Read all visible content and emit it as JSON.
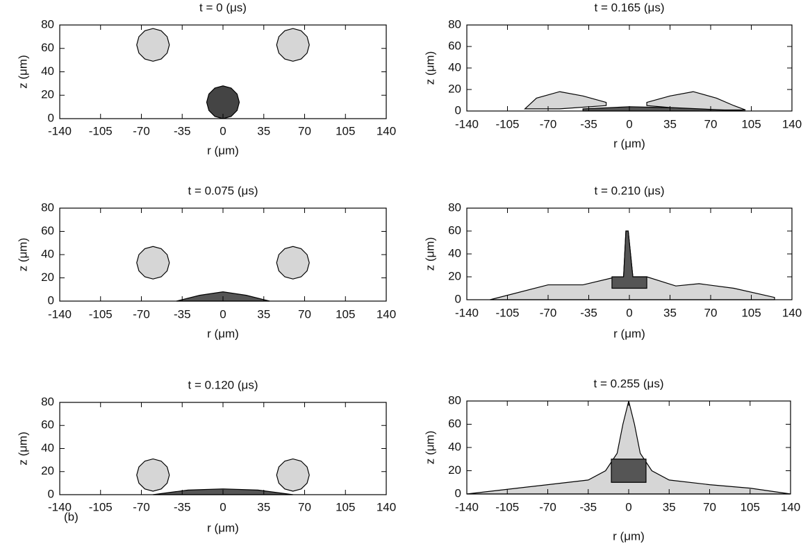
{
  "chart_data": [
    {
      "type": "area",
      "title": "t = 0 (μs)",
      "xlabel": "r (μm)",
      "ylabel": "z (μm)",
      "xlim": [
        -140,
        140
      ],
      "ylim": [
        0,
        80
      ],
      "xticks": [
        -140,
        -105,
        -70,
        -35,
        0,
        35,
        70,
        105,
        140
      ],
      "yticks": [
        0,
        20,
        40,
        60,
        80
      ],
      "series": [
        {
          "color": "#d6d6d6",
          "x": [
            -46,
            -47.9,
            -53,
            -60,
            -67,
            -72.1,
            -74,
            -72.1,
            -67,
            -60,
            -53,
            -47.9
          ],
          "values": [
            63,
            70,
            75.1,
            77,
            75.1,
            70,
            63,
            56,
            50.9,
            49,
            50.9,
            56
          ]
        },
        {
          "color": "#d6d6d6",
          "x": [
            74,
            72.1,
            67,
            60,
            53,
            47.9,
            46,
            47.9,
            53,
            60,
            67,
            72.1
          ],
          "values": [
            63,
            70,
            75.1,
            77,
            75.1,
            70,
            63,
            56,
            50.9,
            49,
            50.9,
            56
          ]
        },
        {
          "color": "#444444",
          "x": [
            14,
            12.1,
            7,
            0,
            -7,
            -12.1,
            -14,
            -12.1,
            -7,
            0,
            7,
            12.1
          ],
          "values": [
            14,
            21,
            26.1,
            28,
            26.1,
            21,
            14,
            7,
            1.9,
            0,
            1.9,
            7
          ]
        }
      ]
    },
    {
      "type": "area",
      "title": "t = 0.165 (μs)",
      "xlabel": "r (μm)",
      "ylabel": "z (μm)",
      "xlim": [
        -140,
        140
      ],
      "ylim": [
        0,
        80
      ],
      "xticks": [
        -140,
        -105,
        -70,
        -35,
        0,
        35,
        70,
        105,
        140
      ],
      "yticks": [
        0,
        20,
        40,
        60,
        80
      ],
      "series": [
        {
          "color": "#d6d6d6",
          "x": [
            -90,
            -80,
            -60,
            -40,
            -20,
            -20,
            -60,
            -90
          ],
          "values": [
            2,
            12,
            18,
            14,
            8,
            5,
            2,
            2
          ]
        },
        {
          "color": "#d6d6d6",
          "x": [
            15,
            35,
            55,
            75,
            90,
            100,
            60,
            15
          ],
          "values": [
            8,
            14,
            18,
            12,
            5,
            1,
            1,
            5
          ]
        },
        {
          "color": "#555555",
          "x": [
            -40,
            0,
            40,
            100,
            -40
          ],
          "values": [
            2,
            4,
            3,
            0,
            0
          ]
        }
      ]
    },
    {
      "type": "area",
      "title": "t = 0.075 (μs)",
      "xlabel": "r (μm)",
      "ylabel": "z (μm)",
      "xlim": [
        -140,
        140
      ],
      "ylim": [
        0,
        80
      ],
      "xticks": [
        -140,
        -105,
        -70,
        -35,
        0,
        35,
        70,
        105,
        140
      ],
      "yticks": [
        0,
        20,
        40,
        60,
        80
      ],
      "series": [
        {
          "color": "#d6d6d6",
          "x": [
            -46,
            -47.9,
            -53,
            -60,
            -67,
            -72.1,
            -74,
            -72.1,
            -67,
            -60,
            -53,
            -47.9
          ],
          "values": [
            33,
            40,
            45.1,
            47,
            45.1,
            40,
            33,
            26,
            20.9,
            19,
            20.9,
            26
          ]
        },
        {
          "color": "#d6d6d6",
          "x": [
            74,
            72.1,
            67,
            60,
            53,
            47.9,
            46,
            47.9,
            53,
            60,
            67,
            72.1
          ],
          "values": [
            33,
            40,
            45.1,
            47,
            45.1,
            40,
            33,
            26,
            20.9,
            19,
            20.9,
            26
          ]
        },
        {
          "color": "#555555",
          "x": [
            -40,
            -20,
            0,
            20,
            40
          ],
          "values": [
            0,
            5,
            8,
            5,
            0
          ]
        }
      ]
    },
    {
      "type": "area",
      "title": "t = 0.210 (μs)",
      "xlabel": "r (μm)",
      "ylabel": "z (μm)",
      "xlim": [
        -140,
        140
      ],
      "ylim": [
        0,
        80
      ],
      "xticks": [
        -140,
        -105,
        -70,
        -35,
        0,
        35,
        70,
        105,
        140
      ],
      "yticks": [
        0,
        20,
        40,
        60,
        80
      ],
      "series": [
        {
          "color": "#d6d6d6",
          "x": [
            -120,
            -70,
            -40,
            -15,
            -5,
            -3,
            -1,
            3,
            15,
            40,
            60,
            90,
            125,
            125,
            -120
          ],
          "values": [
            0,
            13,
            13,
            19,
            20,
            60,
            60,
            20,
            20,
            12,
            14,
            10,
            2,
            0,
            0
          ]
        },
        {
          "color": "#555555",
          "x": [
            -15,
            -5,
            -3,
            -1,
            3,
            15,
            15,
            -15
          ],
          "values": [
            20,
            20,
            60,
            60,
            20,
            20,
            10,
            10
          ]
        }
      ]
    },
    {
      "type": "area",
      "title": "t = 0.120 (μs)",
      "xlabel": "r (μm)",
      "ylabel": "z (μm)",
      "annotation": "(b)",
      "xlim": [
        -140,
        140
      ],
      "ylim": [
        0,
        80
      ],
      "xticks": [
        -140,
        -105,
        -70,
        -35,
        0,
        35,
        70,
        105,
        140
      ],
      "yticks": [
        0,
        20,
        40,
        60,
        80
      ],
      "series": [
        {
          "color": "#d6d6d6",
          "x": [
            -46,
            -47.9,
            -53,
            -60,
            -67,
            -72.1,
            -74,
            -72.1,
            -67,
            -60,
            -53,
            -47.9
          ],
          "values": [
            17,
            24,
            29.1,
            31,
            29.1,
            24,
            17,
            10,
            4.9,
            3,
            4.9,
            10
          ]
        },
        {
          "color": "#d6d6d6",
          "x": [
            74,
            72.1,
            67,
            60,
            53,
            47.9,
            46,
            47.9,
            53,
            60,
            67,
            72.1
          ],
          "values": [
            17,
            24,
            29.1,
            31,
            29.1,
            24,
            17,
            10,
            4.9,
            3,
            4.9,
            10
          ]
        },
        {
          "color": "#555555",
          "x": [
            -60,
            -30,
            0,
            30,
            60
          ],
          "values": [
            0,
            4,
            5,
            4,
            0
          ]
        }
      ]
    },
    {
      "type": "area",
      "title": "t = 0.255 (μs)",
      "xlabel": "r (μm)",
      "ylabel": "z (μm)",
      "xlim": [
        -140,
        140
      ],
      "ylim": [
        0,
        80
      ],
      "xticks": [
        -140,
        -105,
        -70,
        -35,
        0,
        35,
        70,
        105,
        140
      ],
      "yticks": [
        0,
        20,
        40,
        60,
        80
      ],
      "series": [
        {
          "color": "#d6d6d6",
          "x": [
            -140,
            -70,
            -35,
            -20,
            -10,
            -5,
            0,
            5,
            10,
            20,
            35,
            70,
            105,
            140,
            -140
          ],
          "values": [
            0,
            8,
            12,
            20,
            35,
            60,
            80,
            60,
            35,
            20,
            12,
            8,
            5,
            0,
            0
          ]
        },
        {
          "color": "#555555",
          "x": [
            -15,
            15,
            15,
            -15
          ],
          "values": [
            30,
            30,
            10,
            10
          ]
        }
      ]
    }
  ]
}
